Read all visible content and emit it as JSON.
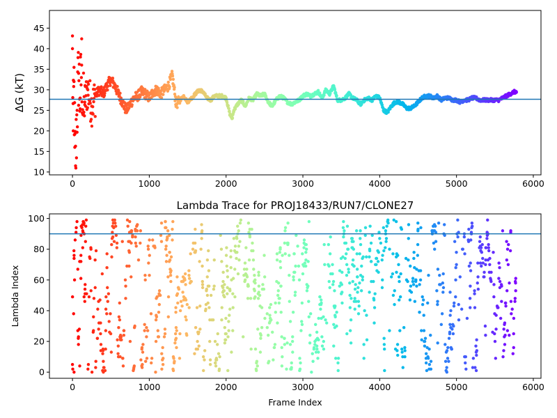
{
  "chart_data": [
    {
      "type": "scatter",
      "title": "",
      "xlabel": "",
      "ylabel": "ΔG (kT)",
      "xlim": [
        -300,
        6100
      ],
      "ylim": [
        9.3,
        49.3
      ],
      "xticks": [
        0,
        1000,
        2000,
        3000,
        4000,
        5000,
        6000
      ],
      "yticks": [
        10,
        15,
        20,
        25,
        30,
        35,
        40,
        45
      ],
      "xtick_labels": [
        "0",
        "1000",
        "2000",
        "3000",
        "4000",
        "5000",
        "6000"
      ],
      "ytick_labels": [
        "10",
        "15",
        "20",
        "25",
        "30",
        "35",
        "40",
        "45"
      ],
      "hline": 27.7,
      "colormap": "rainbow (red → violet by frame index)",
      "grid": false,
      "series": [
        {
          "x": [
            0,
            10,
            20,
            30,
            40,
            60,
            80,
            100,
            120,
            140,
            160,
            200,
            250,
            300,
            350,
            400,
            450,
            500,
            550,
            600,
            650,
            700,
            750,
            800,
            850,
            900,
            950,
            1000,
            1050,
            1100,
            1150,
            1200,
            1250,
            1300,
            1350,
            1400,
            1450,
            1500,
            1550,
            1600,
            1650,
            1700,
            1750,
            1800,
            1850,
            1900,
            1950,
            2000,
            2050,
            2080,
            2100,
            2150,
            2200,
            2250,
            2300,
            2350,
            2400,
            2450,
            2500,
            2550,
            2600,
            2650,
            2700,
            2750,
            2800,
            2850,
            2900,
            2950,
            3000,
            3050,
            3100,
            3150,
            3200,
            3250,
            3300,
            3350,
            3400,
            3450,
            3500,
            3550,
            3600,
            3650,
            3700,
            3750,
            3800,
            3850,
            3900,
            3950,
            4000,
            4050,
            4100,
            4150,
            4200,
            4250,
            4300,
            4350,
            4400,
            4450,
            4500,
            4550,
            4600,
            4650,
            4700,
            4750,
            4800,
            4850,
            4900,
            4950,
            5000,
            5050,
            5100,
            5150,
            5200,
            5250,
            5300,
            5350,
            5400,
            5450,
            5500,
            5550,
            5600,
            5650,
            5700,
            5750,
            5780
          ],
          "y": [
            40.0,
            20.0,
            32.0,
            16.0,
            11.5,
            25.0,
            34.0,
            28.0,
            36.0,
            24.0,
            27.0,
            30.0,
            26.0,
            28.5,
            30.0,
            29.0,
            31.0,
            32.5,
            31.0,
            29.0,
            27.0,
            25.0,
            26.5,
            28.0,
            28.5,
            29.5,
            29.0,
            28.0,
            29.5,
            30.0,
            29.0,
            30.0,
            31.0,
            33.5,
            26.5,
            27.5,
            28.5,
            27.0,
            28.0,
            29.0,
            30.0,
            29.5,
            28.0,
            27.5,
            28.5,
            28.5,
            28.5,
            28.0,
            24.0,
            23.0,
            25.0,
            26.5,
            27.5,
            26.0,
            28.0,
            27.5,
            29.0,
            28.5,
            29.0,
            27.0,
            26.0,
            27.5,
            28.5,
            28.0,
            27.0,
            26.5,
            27.0,
            27.5,
            28.5,
            29.0,
            28.5,
            29.0,
            29.5,
            28.0,
            30.0,
            29.0,
            31.0,
            27.5,
            27.5,
            28.0,
            29.0,
            28.0,
            27.5,
            26.5,
            27.5,
            28.0,
            27.5,
            28.5,
            28.0,
            25.0,
            24.5,
            26.0,
            27.0,
            27.0,
            26.5,
            25.5,
            25.5,
            26.0,
            27.0,
            28.0,
            28.5,
            28.5,
            28.0,
            28.5,
            27.5,
            28.0,
            28.0,
            27.5,
            27.5,
            27.0,
            27.5,
            27.5,
            28.0,
            28.0,
            27.5,
            27.5,
            27.5,
            27.5,
            27.5,
            27.5,
            28.0,
            28.5,
            29.0,
            29.5,
            29.5
          ]
        }
      ]
    },
    {
      "type": "scatter",
      "title": "Lambda Trace for PROJ18433/RUN7/CLONE27",
      "xlabel": "Frame Index",
      "ylabel": "Lambda Index",
      "xlim": [
        -300,
        6100
      ],
      "ylim": [
        -4,
        103
      ],
      "xticks": [
        0,
        1000,
        2000,
        3000,
        4000,
        5000,
        6000
      ],
      "yticks": [
        0,
        20,
        40,
        60,
        80,
        100
      ],
      "xtick_labels": [
        "0",
        "1000",
        "2000",
        "3000",
        "4000",
        "5000",
        "6000"
      ],
      "ytick_labels": [
        "0",
        "20",
        "40",
        "60",
        "80",
        "100"
      ],
      "hline": 90,
      "colormap": "rainbow (red → violet by frame index)",
      "grid": false,
      "frame_range": [
        0,
        5780
      ],
      "lambda_range": [
        0,
        99
      ]
    }
  ]
}
